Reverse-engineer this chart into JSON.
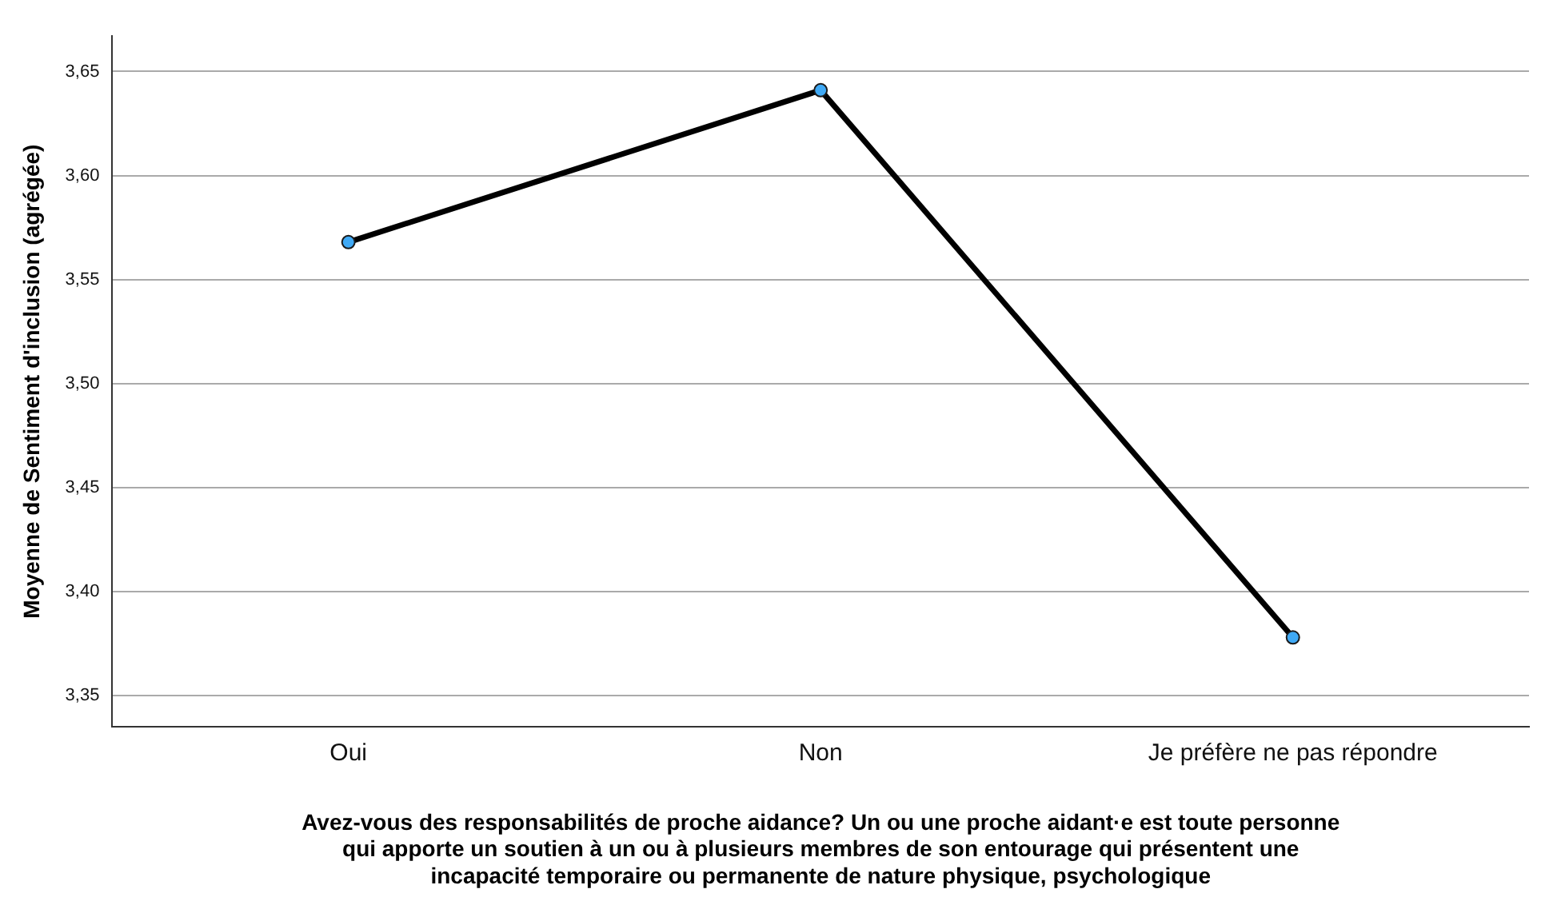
{
  "chart_data": {
    "type": "line",
    "categories": [
      "Oui",
      "Non",
      "Je préfère ne pas répondre"
    ],
    "series": [
      {
        "color": "#000000",
        "values": [
          3.568,
          3.641,
          3.378
        ]
      }
    ],
    "marker": "circle",
    "line_style": "solid",
    "grid": "y",
    "legend": false,
    "ylim": [
      3.335,
      3.667
    ],
    "yticks": [
      {
        "value": 3.35,
        "label": "3,35"
      },
      {
        "value": 3.4,
        "label": "3,40"
      },
      {
        "value": 3.45,
        "label": "3,45"
      },
      {
        "value": 3.5,
        "label": "3,50"
      },
      {
        "value": 3.55,
        "label": "3,55"
      },
      {
        "value": 3.6,
        "label": "3,60"
      },
      {
        "value": 3.65,
        "label": "3,65"
      }
    ],
    "ylabel": "Moyenne de Sentiment d'inclusion (agrégée)",
    "xlabel": "Avez-vous des responsabilités de proche aidance? Un ou une proche aidant·e est toute personne\nqui apporte un soutien à un ou à plusieurs membres de son entourage qui présentent une\nincapacité temporaire ou permanente de nature physique, psychologique"
  }
}
